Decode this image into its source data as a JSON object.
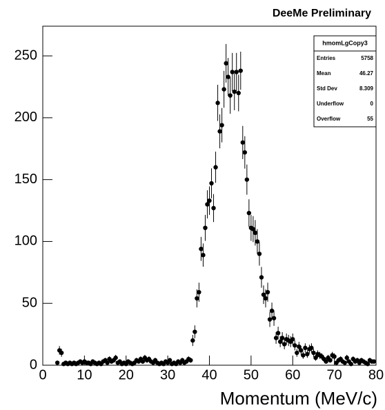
{
  "chart_data": {
    "type": "errorbar-scatter",
    "title": "DeeMe Preliminary",
    "x_label": "Momentum (MeV/c)",
    "color": "#000000",
    "x": [
      3.5,
      4,
      4.5,
      5,
      5.5,
      6,
      6.5,
      7,
      7.5,
      8,
      8.5,
      9,
      9.5,
      10,
      10.5,
      11,
      11.5,
      12,
      12.5,
      13,
      13.5,
      14,
      14.5,
      15,
      15.5,
      16,
      16.5,
      17,
      17.5,
      18,
      18.5,
      19,
      19.5,
      20,
      20.5,
      21,
      21.5,
      22,
      22.5,
      23,
      23.5,
      24,
      24.5,
      25,
      25.5,
      26,
      26.5,
      27,
      27.5,
      28,
      28.5,
      29,
      29.5,
      30,
      30.5,
      31,
      31.5,
      32,
      32.5,
      33,
      33.5,
      34,
      34.5,
      35,
      35.5,
      36,
      36.5,
      37,
      37.5,
      38,
      38.5,
      39,
      39.5,
      40,
      40.5,
      41,
      41.5,
      42,
      42.5,
      43,
      43.5,
      44,
      44.5,
      45,
      45.5,
      46,
      46.5,
      47,
      47.5,
      48,
      48.5,
      49,
      49.5,
      50,
      50.5,
      51,
      51.5,
      52,
      52.5,
      53,
      53.5,
      54,
      54.5,
      55,
      55.5,
      56,
      56.5,
      57,
      57.5,
      58,
      58.5,
      59,
      59.5,
      60,
      60.5,
      61,
      61.5,
      62,
      62.5,
      63,
      63.5,
      64,
      64.5,
      65,
      65.5,
      66,
      66.5,
      67,
      67.5,
      68,
      68.5,
      69,
      69.5,
      70,
      70.5,
      71,
      71.5,
      72,
      72.5,
      73,
      73.5,
      74,
      74.5,
      75,
      75.5,
      76,
      76.5,
      77,
      77.5,
      78,
      78.5,
      79,
      79.5
    ],
    "values": [
      2,
      12,
      10,
      1,
      2,
      1,
      2,
      1,
      2,
      1,
      2,
      3,
      2,
      3,
      2,
      2,
      1,
      3,
      2,
      1,
      2,
      1,
      3,
      4,
      2,
      5,
      3,
      4,
      6,
      2,
      3,
      1,
      2,
      1,
      3,
      2,
      1,
      2,
      4,
      3,
      5,
      3,
      6,
      4,
      5,
      3,
      2,
      4,
      2,
      1,
      2,
      1,
      3,
      2,
      4,
      1,
      2,
      1,
      3,
      2,
      4,
      2,
      3,
      5,
      4,
      20,
      27,
      54,
      59,
      94,
      89,
      111,
      130,
      133,
      147,
      127,
      160,
      212,
      189,
      194,
      223,
      244,
      233,
      218,
      237,
      221,
      237,
      220,
      238,
      180,
      172,
      150,
      123,
      111,
      110,
      107,
      100,
      90,
      71,
      57,
      54,
      59,
      37,
      44,
      38,
      22,
      26,
      19,
      22,
      17,
      21,
      20,
      19,
      21,
      16,
      10,
      15,
      12,
      8,
      14,
      9,
      13,
      14,
      10,
      6,
      9,
      8,
      7,
      5,
      3,
      6,
      4,
      8,
      7,
      2,
      4,
      5,
      3,
      2,
      6,
      3,
      1,
      5,
      3,
      4,
      2,
      4,
      3,
      2,
      1,
      4,
      3,
      3
    ],
    "errors": [
      1.4,
      3.5,
      3.2,
      1,
      1.4,
      1,
      1.4,
      1,
      1.4,
      1,
      1.4,
      1.7,
      1.4,
      1.7,
      1.4,
      1.4,
      1,
      1.7,
      1.4,
      1,
      1.4,
      1,
      1.7,
      2,
      1.4,
      2.2,
      1.7,
      2,
      2.4,
      1.4,
      1.7,
      1,
      1.4,
      1,
      1.7,
      1.4,
      1,
      1.4,
      2,
      1.7,
      2.2,
      1.7,
      2.4,
      2,
      2.2,
      1.7,
      1.4,
      2,
      1.4,
      1,
      1.4,
      1,
      1.7,
      1.4,
      2,
      1,
      1.4,
      1,
      1.7,
      1.4,
      2,
      1.4,
      1.7,
      2.2,
      2,
      4.5,
      5.2,
      7.3,
      7.7,
      9.7,
      9.4,
      10.5,
      11.4,
      11.5,
      12.1,
      11.3,
      12.6,
      14.6,
      13.7,
      13.9,
      14.9,
      15.6,
      15.3,
      14.8,
      15.4,
      14.9,
      15.4,
      14.8,
      15.4,
      13.4,
      13.1,
      12.2,
      11.1,
      10.5,
      10.5,
      10.3,
      10,
      9.5,
      8.4,
      7.5,
      7.3,
      7.7,
      6.1,
      6.6,
      6.2,
      4.7,
      5.1,
      4.4,
      4.7,
      4.1,
      4.6,
      4.5,
      4.4,
      4.6,
      4,
      3.2,
      3.9,
      3.5,
      2.8,
      3.7,
      3,
      3.6,
      3.7,
      3.2,
      2.4,
      3,
      2.8,
      2.6,
      2.2,
      1.7,
      2.4,
      2,
      2.8,
      2.6,
      1.4,
      2,
      2.2,
      1.7,
      1.4,
      2.4,
      1.7,
      1,
      2.2,
      1.7,
      2,
      1.4,
      2,
      1.7,
      1.4,
      1,
      2,
      1.7,
      1.7
    ],
    "xlim": [
      0,
      80
    ],
    "xticks": [
      0,
      10,
      20,
      30,
      40,
      50,
      60,
      70,
      80
    ],
    "ylim": [
      0,
      274
    ],
    "yticks": [
      0,
      50,
      100,
      150,
      200,
      250
    ],
    "stats_box": {
      "title": "hmomLgCopy3",
      "rows": [
        [
          "Entries",
          "5758"
        ],
        [
          "Mean",
          "46.27"
        ],
        [
          "Std Dev",
          "8.309"
        ],
        [
          "Underflow",
          "0"
        ],
        [
          "Overflow",
          "55"
        ]
      ]
    }
  }
}
